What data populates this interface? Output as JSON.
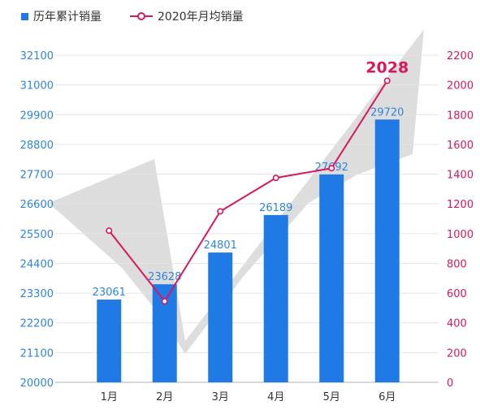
{
  "chart_data": {
    "type": "bar",
    "categories": [
      "1月",
      "2月",
      "3月",
      "4月",
      "5月",
      "6月"
    ],
    "series": [
      {
        "name": "历年累计销量",
        "type": "bar",
        "axis": "left",
        "color": "#1f7ae6",
        "values": [
          23061,
          23628,
          24801,
          26189,
          27692,
          29720
        ]
      },
      {
        "name": "2020年月均销量",
        "type": "line",
        "axis": "right",
        "color": "#d6185f",
        "values": [
          1020,
          545,
          1150,
          1375,
          1440,
          2028
        ]
      }
    ],
    "y_left": {
      "ticks": [
        "32100",
        "31000",
        "29900",
        "28800",
        "27700",
        "26600",
        "25500",
        "24400",
        "23300",
        "22200",
        "21100",
        "20000"
      ],
      "range": [
        20000,
        32100
      ],
      "color": "#2f86d9"
    },
    "y_right": {
      "ticks": [
        "2200",
        "2000",
        "1800",
        "1600",
        "1400",
        "1200",
        "1000",
        "800",
        "600",
        "400",
        "200",
        "0"
      ],
      "range": [
        0,
        2200
      ],
      "color": "#d6185f"
    },
    "highlight_label": "2028",
    "grid": true,
    "legend_position": "top-left",
    "background_decoration": "grey-checkmark"
  }
}
